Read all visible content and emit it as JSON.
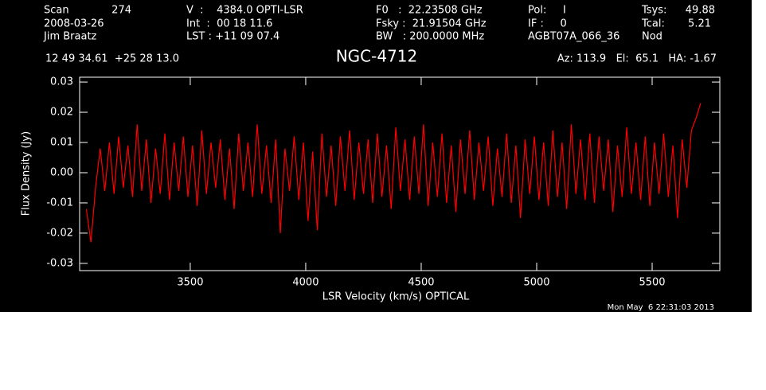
{
  "header": {
    "rows": [
      [
        "Scan",
        "274",
        "V  :    4384.0 OPTI-LSR",
        "F0   :  22.23508 GHz",
        "Pol:     I",
        "Tsys:",
        "49.88"
      ],
      [
        "2008-03-26",
        "Int  :  00 18 11.6",
        "Fsky :  21.91504 GHz",
        "IF :     0",
        "Tcal:",
        "5.21"
      ],
      [
        "Jim Braatz",
        "LST : +11 09 07.4",
        "BW   : 200.0000 MHz",
        "AGBT07A_066_36",
        "Nod"
      ]
    ],
    "coordinates": "12 49 34.61  +25 28 13.0",
    "pointing": "Az: 113.9   El:  65.1   HA: -1.67",
    "footer": "Mon May  6 22:31:03 2013"
  },
  "chart_data": {
    "type": "line",
    "title": "NGC-4712",
    "x_label": "LSR Velocity (km/s) OPTICAL",
    "y_label": "Flux Density (Jy)",
    "xlim": [
      3021,
      5793
    ],
    "ylim": [
      -0.0324,
      0.0316
    ],
    "xticks": [
      3500,
      4000,
      4500,
      5000,
      5500
    ],
    "yticks": [
      0.03,
      0.02,
      0.01,
      {
        "value": 0,
        "label": "0.00"
      },
      -0.01,
      -0.02,
      -0.03
    ],
    "series": [
      {
        "color": "#ff0000",
        "x": [
          3050,
          3070,
          3090,
          3110,
          3130,
          3150,
          3170,
          3190,
          3210,
          3230,
          3250,
          3270,
          3290,
          3310,
          3330,
          3350,
          3370,
          3390,
          3410,
          3430,
          3450,
          3470,
          3490,
          3510,
          3530,
          3550,
          3570,
          3590,
          3610,
          3630,
          3650,
          3670,
          3690,
          3710,
          3730,
          3750,
          3770,
          3790,
          3810,
          3830,
          3850,
          3870,
          3890,
          3910,
          3930,
          3950,
          3970,
          3990,
          4010,
          4030,
          4050,
          4070,
          4090,
          4110,
          4130,
          4150,
          4170,
          4190,
          4210,
          4230,
          4250,
          4270,
          4290,
          4310,
          4330,
          4350,
          4370,
          4390,
          4410,
          4430,
          4450,
          4470,
          4490,
          4510,
          4530,
          4550,
          4570,
          4590,
          4610,
          4630,
          4650,
          4670,
          4690,
          4710,
          4730,
          4750,
          4770,
          4790,
          4810,
          4830,
          4850,
          4870,
          4890,
          4910,
          4930,
          4950,
          4970,
          4990,
          5010,
          5030,
          5050,
          5070,
          5090,
          5110,
          5130,
          5150,
          5170,
          5190,
          5210,
          5230,
          5250,
          5270,
          5290,
          5310,
          5330,
          5350,
          5370,
          5390,
          5410,
          5430,
          5450,
          5470,
          5490,
          5510,
          5530,
          5550,
          5570,
          5590,
          5610,
          5630,
          5650,
          5670,
          5690,
          5710
        ],
        "values": [
          -0.012,
          -0.023,
          -0.005,
          0.008,
          -0.006,
          0.01,
          -0.007,
          0.012,
          -0.005,
          0.009,
          -0.008,
          0.016,
          -0.006,
          0.011,
          -0.01,
          0.008,
          -0.007,
          0.013,
          -0.009,
          0.01,
          -0.006,
          0.012,
          -0.008,
          0.009,
          -0.011,
          0.014,
          -0.007,
          0.01,
          -0.005,
          0.011,
          -0.009,
          0.008,
          -0.012,
          0.013,
          -0.006,
          0.01,
          -0.008,
          0.016,
          -0.007,
          0.009,
          -0.01,
          0.011,
          -0.02,
          0.008,
          -0.006,
          0.012,
          -0.009,
          0.01,
          -0.016,
          0.007,
          -0.019,
          0.013,
          -0.008,
          0.009,
          -0.011,
          0.012,
          -0.006,
          0.014,
          -0.009,
          0.01,
          -0.007,
          0.011,
          -0.01,
          0.013,
          -0.008,
          0.009,
          -0.012,
          0.015,
          -0.006,
          0.011,
          -0.009,
          0.012,
          -0.007,
          0.016,
          -0.011,
          0.01,
          -0.008,
          0.013,
          -0.01,
          0.009,
          -0.013,
          0.011,
          -0.007,
          0.014,
          -0.009,
          0.01,
          -0.006,
          0.012,
          -0.011,
          0.008,
          -0.008,
          0.013,
          -0.01,
          0.009,
          -0.015,
          0.011,
          -0.007,
          0.012,
          -0.009,
          0.01,
          -0.011,
          0.014,
          -0.008,
          0.01,
          -0.012,
          0.016,
          -0.007,
          0.011,
          -0.009,
          0.013,
          -0.01,
          0.012,
          -0.006,
          0.011,
          -0.013,
          0.009,
          -0.008,
          0.015,
          -0.007,
          0.01,
          -0.009,
          0.012,
          -0.011,
          0.01,
          -0.007,
          0.013,
          -0.008,
          0.009,
          -0.015,
          0.011,
          -0.005,
          0.014,
          0.018,
          0.023
        ]
      }
    ]
  }
}
